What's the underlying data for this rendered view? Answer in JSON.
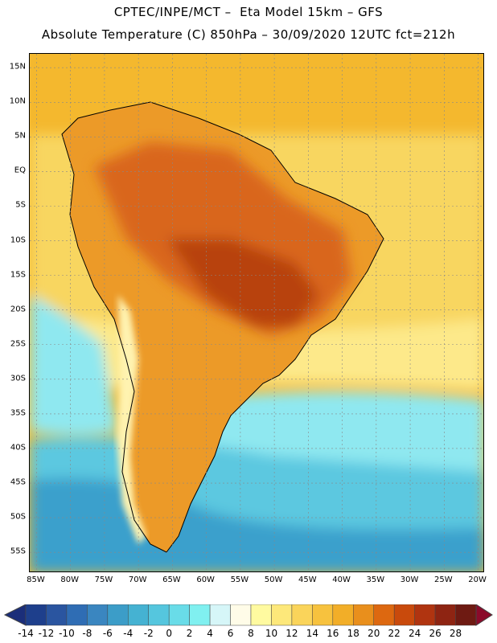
{
  "title_line1": "CPTEC/INPE/MCT –  Eta Model 15km – GFS",
  "title_line2": "Absolute Temperature (C) 850hPa – 30/09/2020 12UTC fct=212h",
  "lat_labels": [
    "15N",
    "10N",
    "5N",
    "EQ",
    "5S",
    "10S",
    "15S",
    "20S",
    "25S",
    "30S",
    "35S",
    "40S",
    "45S",
    "50S",
    "55S"
  ],
  "lon_labels": [
    "85W",
    "80W",
    "75W",
    "70W",
    "65W",
    "60W",
    "55W",
    "50W",
    "45W",
    "40W",
    "35W",
    "30W",
    "25W",
    "20W"
  ],
  "colorbar": {
    "labels": [
      "-14",
      "-12",
      "-10",
      "-8",
      "-6",
      "-4",
      "-2",
      "0",
      "2",
      "4",
      "6",
      "8",
      "10",
      "12",
      "14",
      "16",
      "18",
      "20",
      "22",
      "24",
      "26",
      "28"
    ],
    "colors": [
      "#1e3f8c",
      "#2a55a0",
      "#2f6db4",
      "#3a86c0",
      "#3c9dc8",
      "#45b2d2",
      "#55c6de",
      "#69dce8",
      "#80f0f0",
      "#d6f6f8",
      "#fffce8",
      "#fffaa0",
      "#fde87a",
      "#fad45a",
      "#f7c23e",
      "#f2ae28",
      "#e98f1c",
      "#dd6810",
      "#c94a0c",
      "#b03410",
      "#8e2412",
      "#6e1a12"
    ],
    "under_color": "#1b2e7a",
    "over_color": "#8b0a2a"
  },
  "map_colors": {
    "ocean_warm": "#f4b82e",
    "ocean_mild": "#f8d660",
    "ocean_cool": "#fde98a",
    "ocean_cold": "#8fe8f0",
    "ocean_colder": "#5cc8e0",
    "ocean_coldest": "#3aa0cc",
    "land_hot": "#d9661a",
    "land_veryhot": "#b8430e",
    "land_warm": "#ec9a28",
    "andes_cool": "#fff3b0"
  }
}
